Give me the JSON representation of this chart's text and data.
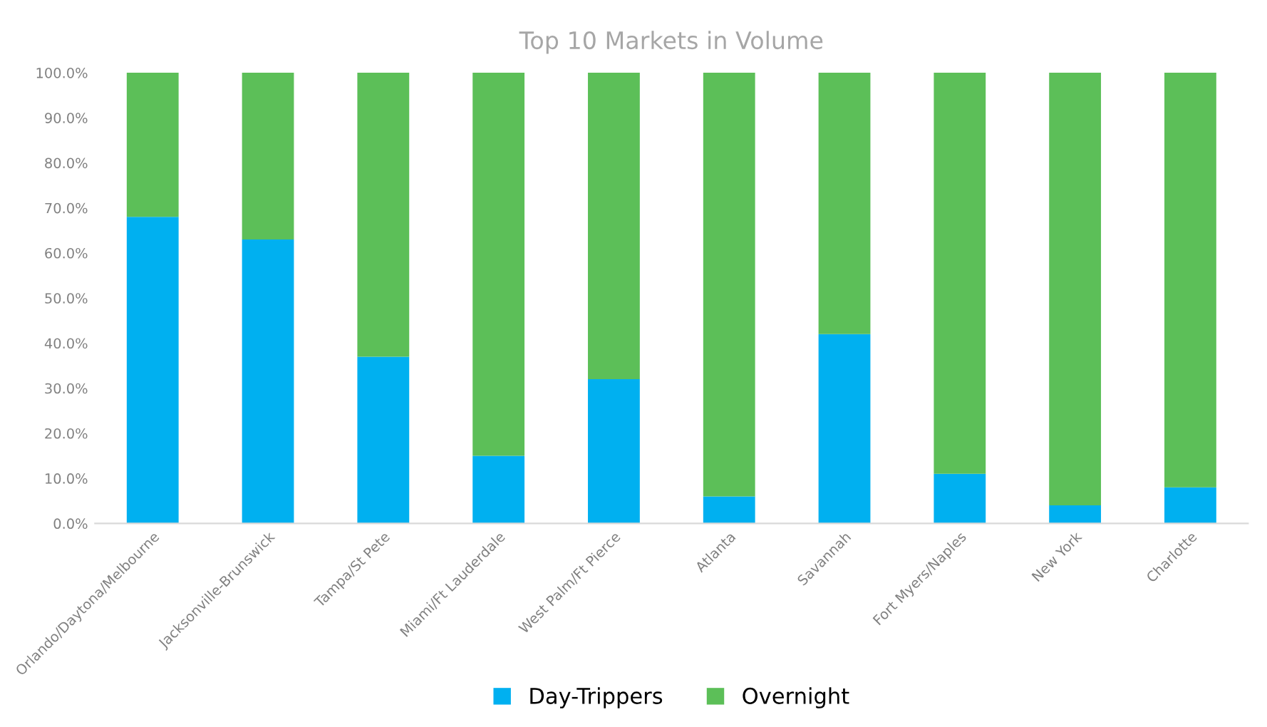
{
  "chart_data": {
    "type": "bar",
    "title": "Top 10 Markets in Volume",
    "stacked": true,
    "categories": [
      "Orlando/Daytona/Melbourne",
      "Jacksonville-Brunswick",
      "Tampa/St Pete",
      "Miami/Ft Lauderdale",
      "West Palm/Ft Pierce",
      "Atlanta",
      "Savannah",
      "Fort Myers/Naples",
      "New York",
      "Charlotte"
    ],
    "series": [
      {
        "name": "Day-Trippers",
        "color": "#00b0f0",
        "values": [
          68,
          63,
          37,
          15,
          32,
          6,
          42,
          11,
          4,
          8
        ]
      },
      {
        "name": "Overnight",
        "color": "#5cbf58",
        "values": [
          32,
          37,
          63,
          85,
          68,
          94,
          58,
          89,
          96,
          92
        ]
      }
    ],
    "ylim": [
      0,
      100
    ],
    "yticks": [
      {
        "value": 0,
        "label": "0.0%"
      },
      {
        "value": 10,
        "label": "10.0%"
      },
      {
        "value": 20,
        "label": "20.0%"
      },
      {
        "value": 30,
        "label": "30.0%"
      },
      {
        "value": 40,
        "label": "40.0%"
      },
      {
        "value": 50,
        "label": "50.0%"
      },
      {
        "value": 60,
        "label": "60.0%"
      },
      {
        "value": 70,
        "label": "70.0%"
      },
      {
        "value": 80,
        "label": "80.0%"
      },
      {
        "value": 90,
        "label": "90.0%"
      },
      {
        "value": 100,
        "label": "100.0%"
      }
    ],
    "grid": false,
    "legend": "bottom"
  }
}
